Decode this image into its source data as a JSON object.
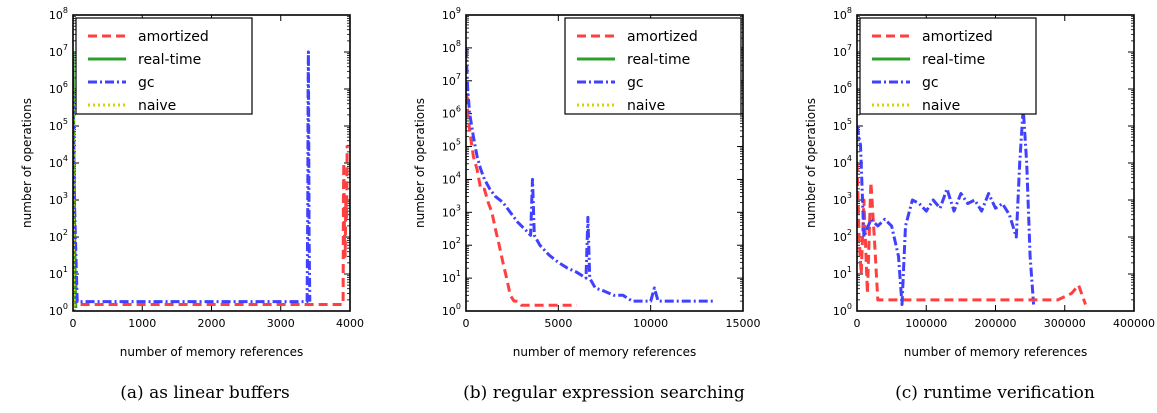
{
  "chart_data": [
    {
      "type": "line",
      "caption": "(a) as linear buffers",
      "xlabel": "number of memory references",
      "ylabel": "number of operations",
      "xlim": [
        0,
        4000
      ],
      "ylim": [
        1,
        100000000
      ],
      "yscale": "log",
      "xticks": [
        "0",
        "1000",
        "2000",
        "3000",
        "4000"
      ],
      "yticks": [
        "10^0",
        "10^1",
        "10^2",
        "10^3",
        "10^4",
        "10^5",
        "10^6",
        "10^7",
        "10^8"
      ],
      "legend": "top-left",
      "series": [
        {
          "name": "amortized",
          "color": "#ff4040",
          "style": "dashed",
          "x": [
            0,
            10,
            20,
            30,
            60,
            200,
            500,
            900,
            1300,
            1800,
            2300,
            2800,
            3200,
            3380,
            3900,
            3905,
            3910,
            3920,
            3930,
            3940,
            3950,
            3960
          ],
          "y": [
            100000,
            1000,
            100,
            10,
            1.5,
            1.5,
            1.5,
            1.5,
            1.5,
            1.5,
            1.5,
            1.5,
            1.5,
            1.5,
            1.5,
            1000,
            10000,
            100,
            30,
            1000,
            300,
            30000
          ]
        },
        {
          "name": "real-time",
          "color": "#2ca02c",
          "style": "solid",
          "x": [
            0,
            5,
            10,
            15,
            20,
            25,
            30,
            35,
            40
          ],
          "y": [
            10000000,
            1000000,
            100000,
            10000,
            1000,
            100,
            10,
            3,
            1.2
          ]
        },
        {
          "name": "gc",
          "color": "#4040ff",
          "style": "dashdot",
          "x": [
            0,
            20,
            60,
            150,
            400,
            800,
            1200,
            1600,
            2000,
            2400,
            2800,
            3200,
            3380,
            3390,
            3395,
            3400,
            3410,
            3420
          ],
          "y": [
            1000000,
            1000,
            1.8,
            1.8,
            1.8,
            1.8,
            1.8,
            1.8,
            1.8,
            1.8,
            1.8,
            1.8,
            1.8,
            1000,
            1000000,
            10000000,
            100,
            1.8
          ]
        },
        {
          "name": "naive",
          "color": "#d4d400",
          "style": "dotted",
          "x": [
            0,
            5,
            10,
            20
          ],
          "y": [
            1000000,
            1000,
            10,
            1
          ]
        }
      ]
    },
    {
      "type": "line",
      "caption": "(b) regular expression searching",
      "xlabel": "number of memory references",
      "ylabel": "number of operations",
      "xlim": [
        0,
        15000
      ],
      "ylim": [
        1,
        1000000000
      ],
      "yscale": "log",
      "xticks": [
        "0",
        "5000",
        "10000",
        "15000"
      ],
      "yticks": [
        "10^0",
        "10^1",
        "10^2",
        "10^3",
        "10^4",
        "10^5",
        "10^6",
        "10^7",
        "10^8",
        "10^9"
      ],
      "legend": "top-right",
      "series": [
        {
          "name": "amortized",
          "color": "#ff4040",
          "style": "dashed",
          "x": [
            0,
            100,
            200,
            400,
            600,
            800,
            1000,
            1200,
            1400,
            1600,
            1800,
            2000,
            2200,
            2400,
            2600,
            2800,
            3000,
            3300,
            3600,
            4000,
            4500,
            5000,
            5500,
            6000
          ],
          "y": [
            10000000,
            1000000,
            300000,
            50000,
            20000,
            5000,
            5000,
            2000,
            1000,
            300,
            100,
            30,
            10,
            3,
            2,
            2,
            1.5,
            1.5,
            1.5,
            1.5,
            1.5,
            1.5,
            1.5,
            1.5
          ]
        },
        {
          "name": "real-time",
          "color": "#2ca02c",
          "style": "solid",
          "x": [],
          "y": []
        },
        {
          "name": "gc",
          "color": "#4040ff",
          "style": "dashdot",
          "x": [
            0,
            100,
            200,
            400,
            600,
            800,
            1000,
            1300,
            1600,
            2000,
            2400,
            2800,
            3200,
            3500,
            3600,
            3700,
            4000,
            4500,
            5000,
            5500,
            6000,
            6500,
            6600,
            6700,
            7000,
            7500,
            8000,
            8500,
            9000,
            9500,
            10000,
            10200,
            10400,
            11000,
            12000,
            13000,
            13500
          ],
          "y": [
            100000000,
            5000000,
            1000000,
            200000,
            50000,
            20000,
            10000,
            5000,
            3000,
            2000,
            1000,
            500,
            300,
            200,
            10000,
            200,
            100,
            50,
            30,
            20,
            15,
            10,
            700,
            10,
            5,
            4,
            3,
            3,
            2,
            2,
            2,
            5,
            2,
            2,
            2,
            2,
            2
          ]
        },
        {
          "name": "naive",
          "color": "#d4d400",
          "style": "dotted",
          "x": [],
          "y": []
        }
      ]
    },
    {
      "type": "line",
      "caption": "(c) runtime verification",
      "xlabel": "number of memory references",
      "ylabel": "number of operations",
      "xlim": [
        0,
        400000
      ],
      "ylim": [
        1,
        100000000
      ],
      "yscale": "log",
      "xticks": [
        "0",
        "100000",
        "200000",
        "300000",
        "400000"
      ],
      "yticks": [
        "10^0",
        "10^1",
        "10^2",
        "10^3",
        "10^4",
        "10^5",
        "10^6",
        "10^7",
        "10^8"
      ],
      "legend": "top-left",
      "series": [
        {
          "name": "amortized",
          "color": "#ff4040",
          "style": "dashed",
          "x": [
            0,
            3000,
            6000,
            10000,
            15000,
            20000,
            25000,
            30000,
            50000,
            80000,
            110000,
            140000,
            170000,
            200000,
            230000,
            260000,
            290000,
            310000,
            320000,
            330000
          ],
          "y": [
            10000,
            100,
            10,
            1000,
            3,
            3000,
            100,
            2,
            2,
            2,
            2,
            2,
            2,
            2,
            2,
            2,
            2,
            3,
            5,
            1.5
          ]
        },
        {
          "name": "real-time",
          "color": "#2ca02c",
          "style": "solid",
          "x": [],
          "y": []
        },
        {
          "name": "gc",
          "color": "#4040ff",
          "style": "dashdot",
          "x": [
            0,
            5000,
            10000,
            20000,
            30000,
            40000,
            50000,
            60000,
            65000,
            70000,
            80000,
            90000,
            100000,
            110000,
            120000,
            130000,
            140000,
            150000,
            160000,
            170000,
            180000,
            190000,
            200000,
            210000,
            220000,
            230000,
            235000,
            240000,
            245000,
            250000,
            255000
          ],
          "y": [
            100000,
            30000,
            100,
            300,
            200,
            300,
            200,
            30,
            1.5,
            200,
            1000,
            800,
            500,
            1000,
            600,
            2000,
            500,
            1500,
            800,
            1000,
            500,
            1500,
            600,
            800,
            400,
            100,
            10000,
            300000,
            10000,
            30,
            1.5
          ]
        },
        {
          "name": "naive",
          "color": "#d4d400",
          "style": "dotted",
          "x": [],
          "y": []
        }
      ]
    }
  ]
}
